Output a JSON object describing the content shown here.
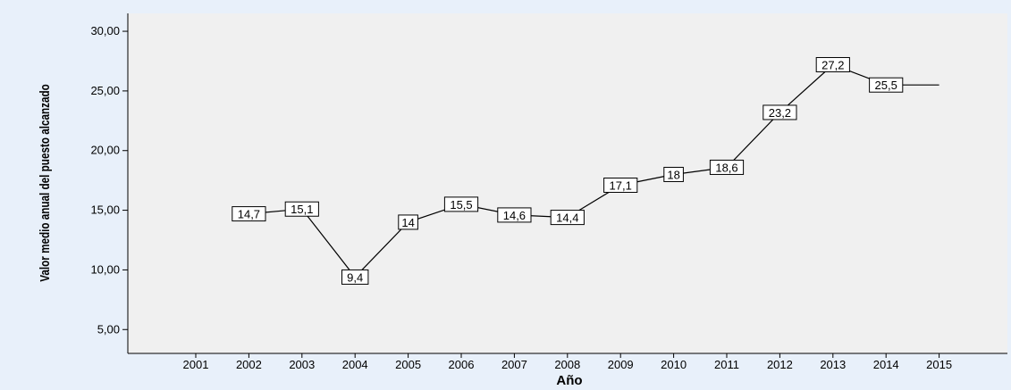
{
  "colors": {
    "outer_background": "#e8f0fa",
    "plot_background": "#f0f0f0",
    "line": "#000000",
    "label_box_fill": "#ffffff",
    "label_box_stroke": "#000000"
  },
  "chart_data": {
    "type": "line",
    "title": "",
    "xlabel": "Año",
    "ylabel": "Valor medio anual del puesto alcanzado",
    "categories": [
      "2001",
      "2002",
      "2003",
      "2004",
      "2005",
      "2006",
      "2007",
      "2008",
      "2009",
      "2010",
      "2011",
      "2012",
      "2013",
      "2014",
      "2015"
    ],
    "y_ticks": [
      "5,00",
      "10,00",
      "15,00",
      "20,00",
      "25,00",
      "30,00"
    ],
    "ylim": [
      3.0,
      31.5
    ],
    "grid": false,
    "legend": "none",
    "series": [
      {
        "values": [
          null,
          14.7,
          15.1,
          9.4,
          14,
          15.5,
          14.6,
          14.4,
          17.1,
          18,
          18.6,
          23.2,
          27.2,
          25.5,
          25.5
        ],
        "data_labels": [
          null,
          "14,7",
          "15,1",
          "9,4",
          "14",
          "15,5",
          "14,6",
          "14,4",
          "17,1",
          "18",
          "18,6",
          "23,2",
          "27,2",
          "25,5",
          null
        ]
      }
    ]
  }
}
